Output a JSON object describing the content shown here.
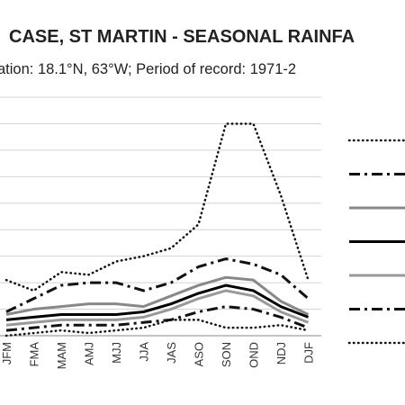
{
  "chart_data": {
    "type": "line",
    "title": "CASE, ST MARTIN - SEASONAL RAINFA",
    "subtitle": "ation: 18.1°N, 63°W; Period of record: 1971-2",
    "categories": [
      "JFM",
      "FMA",
      "MAM",
      "AMJ",
      "MJJ",
      "JJA",
      "JAS",
      "ASO",
      "SON",
      "OND",
      "NDJ",
      "DJF"
    ],
    "ylim": [
      0,
      9
    ],
    "grid": true,
    "legend_position": "right",
    "series": [
      {
        "values": [
          2.1,
          1.7,
          2.4,
          2.3,
          2.8,
          3.0,
          3.3,
          4.2,
          8.0,
          8.0,
          5.3,
          2.1
        ],
        "color": "#111111",
        "style": "dotted",
        "width": 2.5
      },
      {
        "values": [
          0.9,
          1.4,
          1.9,
          2.0,
          2.0,
          1.7,
          2.0,
          2.6,
          2.9,
          2.7,
          2.3,
          1.4
        ],
        "color": "#111111",
        "style": "dashdot",
        "width": 3
      },
      {
        "values": [
          0.8,
          1.0,
          1.1,
          1.2,
          1.2,
          1.1,
          1.5,
          1.9,
          2.2,
          2.1,
          1.3,
          0.8
        ],
        "color": "#888888",
        "style": "solid",
        "width": 3
      },
      {
        "values": [
          0.6,
          0.7,
          0.8,
          0.8,
          0.8,
          0.9,
          1.2,
          1.6,
          1.9,
          1.7,
          1.1,
          0.7
        ],
        "color": "#000000",
        "style": "solid",
        "width": 3
      },
      {
        "values": [
          0.4,
          0.5,
          0.6,
          0.6,
          0.6,
          0.7,
          1.0,
          1.4,
          1.7,
          1.5,
          0.9,
          0.5
        ],
        "color": "#999999",
        "style": "solid",
        "width": 3
      },
      {
        "values": [
          0.2,
          0.3,
          0.4,
          0.4,
          0.4,
          0.5,
          0.6,
          0.9,
          1.1,
          1.0,
          0.7,
          0.3
        ],
        "color": "#111111",
        "style": "dashdot",
        "width": 3
      },
      {
        "values": [
          0.0,
          0.1,
          0.2,
          0.1,
          0.2,
          0.3,
          0.6,
          0.6,
          0.3,
          0.3,
          0.4,
          0.2
        ],
        "color": "#111111",
        "style": "dotted",
        "width": 2.5
      }
    ]
  }
}
